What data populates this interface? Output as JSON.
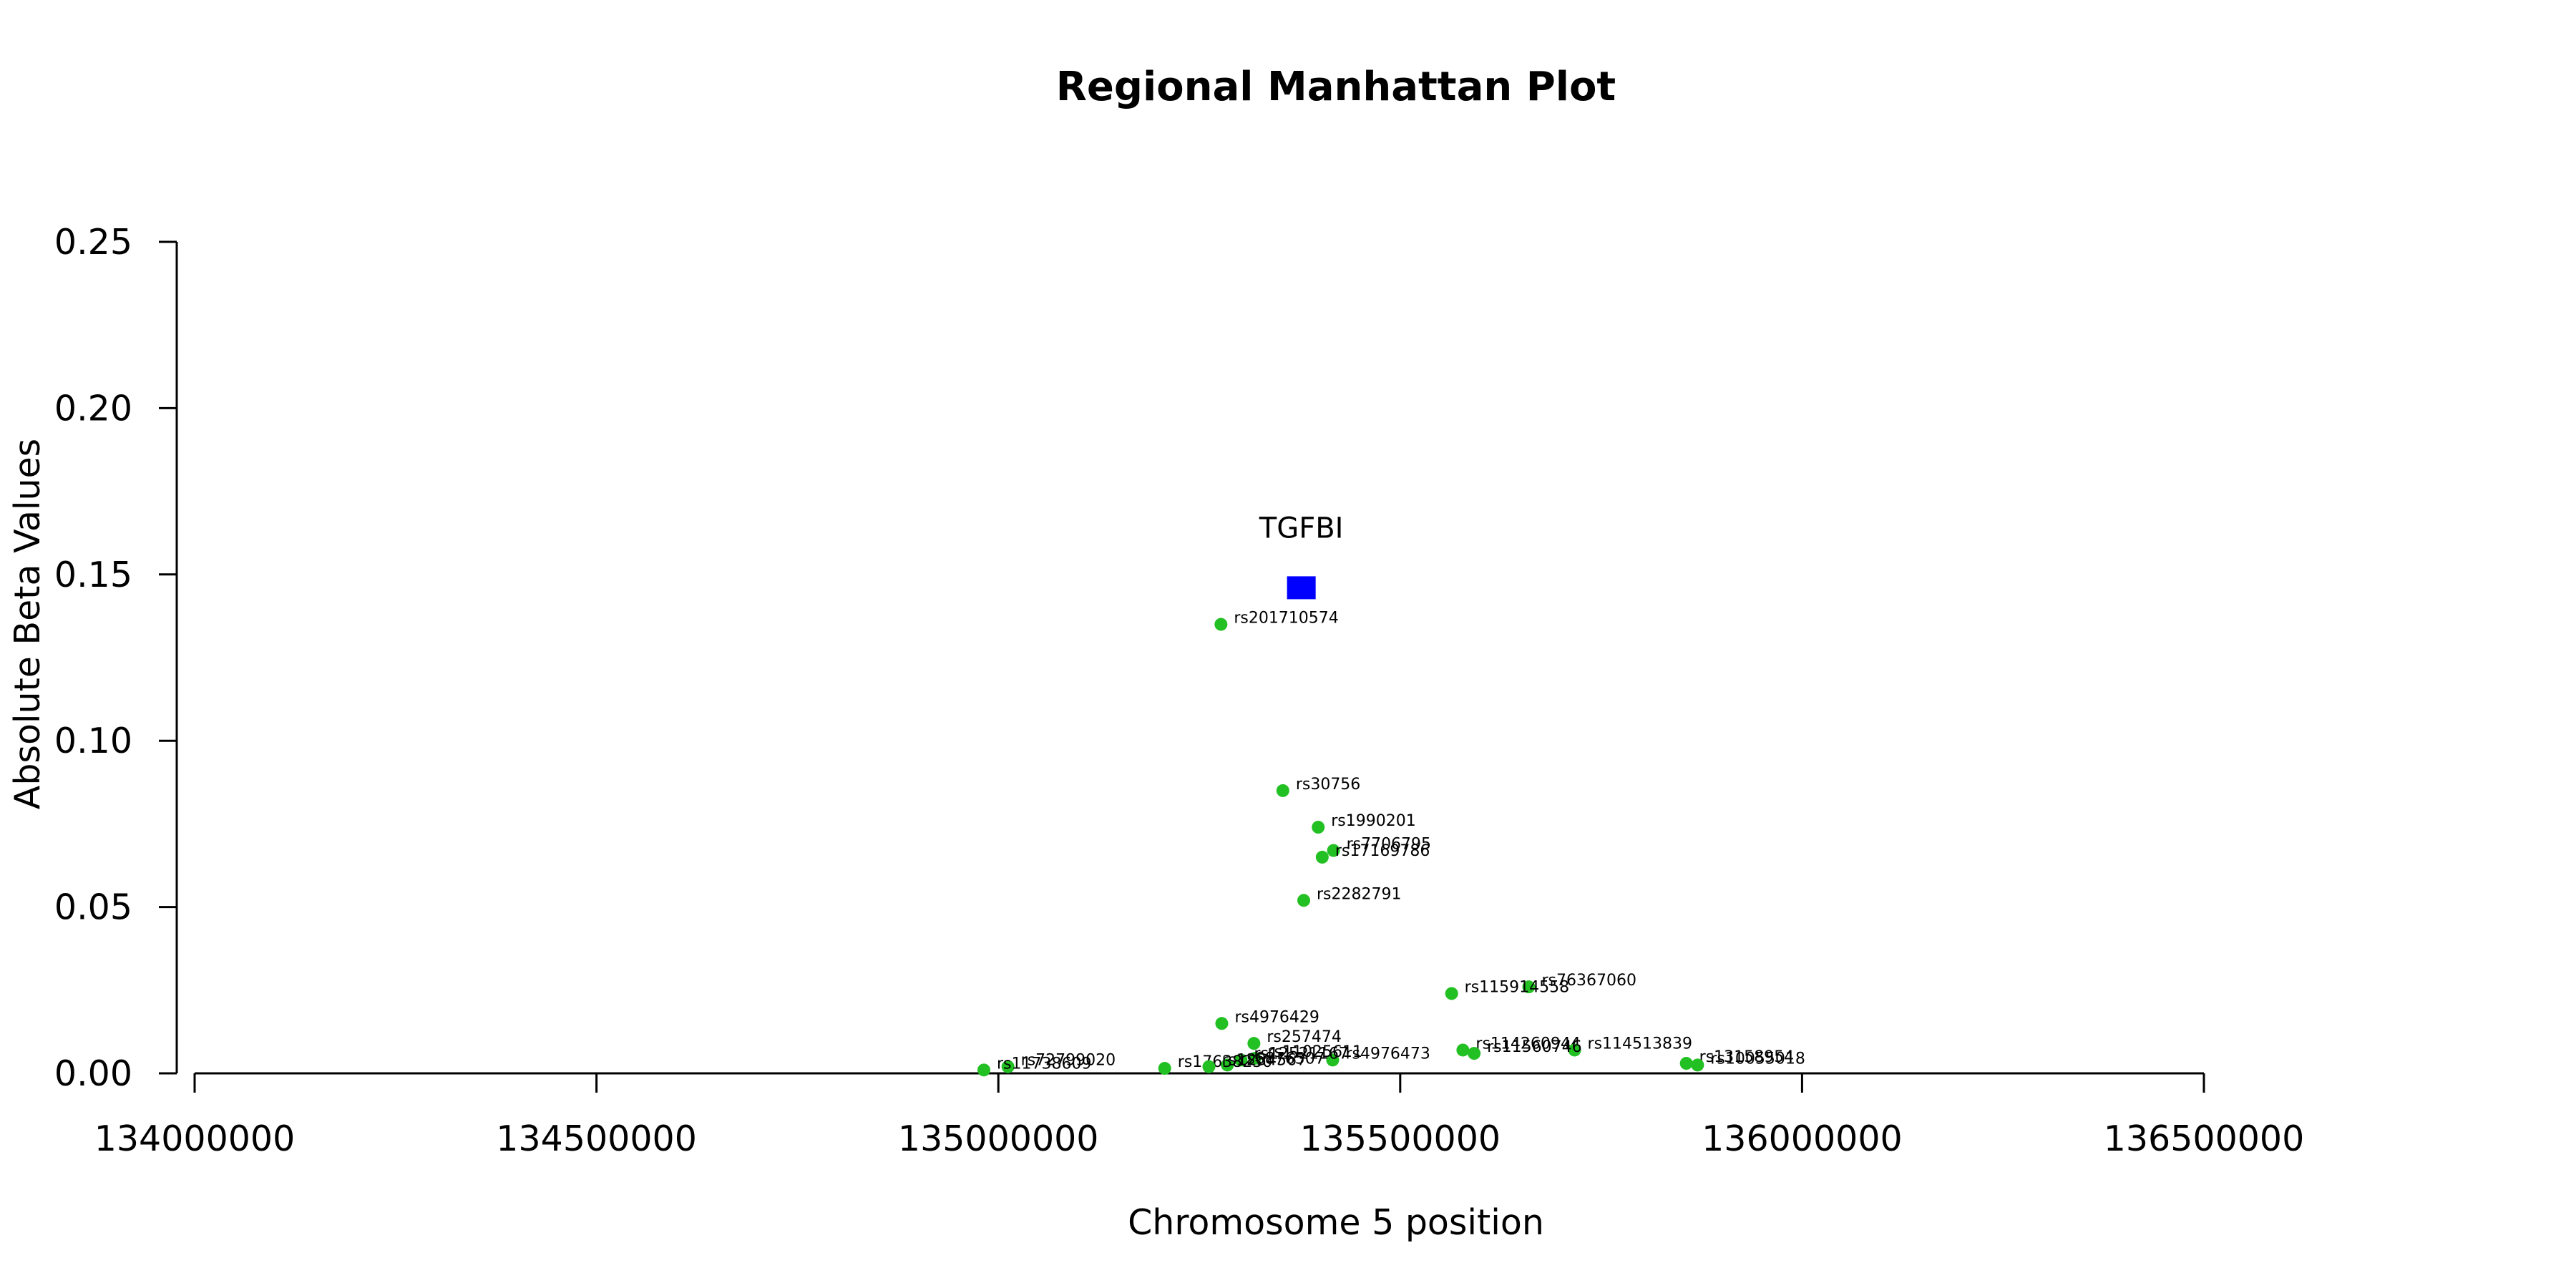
{
  "chart_data": {
    "type": "scatter",
    "title": "Regional Manhattan Plot",
    "xlabel": "Chromosome 5 position",
    "ylabel": "Absolute Beta Values",
    "xlim": [
      134000000,
      136500000
    ],
    "ylim": [
      0,
      0.25
    ],
    "x_ticks": [
      134000000,
      134500000,
      135000000,
      135500000,
      136000000,
      136500000
    ],
    "x_tick_labels": [
      "134000000",
      "134500000",
      "135000000",
      "135500000",
      "136000000",
      "136500000"
    ],
    "y_ticks": [
      0,
      0.05,
      0.1,
      0.15,
      0.2,
      0.25
    ],
    "y_tick_labels": [
      "0.00",
      "0.05",
      "0.10",
      "0.15",
      "0.20",
      "0.25"
    ],
    "grid": false,
    "colors": {
      "snp": "#22c022",
      "gene": "#0000ff"
    },
    "gene": {
      "label": "TGFBI",
      "x": 135377000,
      "y": 0.146
    },
    "series": [
      {
        "points": [
          {
            "label": "rs201710574",
            "x": 135277000,
            "y": 0.135
          },
          {
            "label": "rs30756",
            "x": 135354000,
            "y": 0.085
          },
          {
            "label": "rs1990201",
            "x": 135398000,
            "y": 0.074
          },
          {
            "label": "rs7706795",
            "x": 135417000,
            "y": 0.067
          },
          {
            "label": "rs17169786",
            "x": 135403000,
            "y": 0.065
          },
          {
            "label": "rs2282791",
            "x": 135380000,
            "y": 0.052
          },
          {
            "label": "rs76367060",
            "x": 135660000,
            "y": 0.026
          },
          {
            "label": "rs115914558",
            "x": 135564000,
            "y": 0.024
          },
          {
            "label": "rs4976429",
            "x": 135278000,
            "y": 0.015
          },
          {
            "label": "rs257474",
            "x": 135318000,
            "y": 0.009
          },
          {
            "label": "rs114260944",
            "x": 135578000,
            "y": 0.007
          },
          {
            "label": "rs114513839",
            "x": 135717000,
            "y": 0.007
          },
          {
            "label": "rs11560746",
            "x": 135592000,
            "y": 0.006
          },
          {
            "label": "rs4976473",
            "x": 135416000,
            "y": 0.004
          },
          {
            "label": "rs11025611",
            "x": 135319000,
            "y": 0.0045
          },
          {
            "label": "rs12521167",
            "x": 135302000,
            "y": 0.004
          },
          {
            "label": "rs13158954",
            "x": 135856000,
            "y": 0.003
          },
          {
            "label": "rs10055018",
            "x": 135870000,
            "y": 0.0025
          },
          {
            "label": "rs6876507",
            "x": 135285000,
            "y": 0.0025
          },
          {
            "label": "rs17638230",
            "x": 135207000,
            "y": 0.0015
          },
          {
            "label": "rs1234567",
            "x": 135262000,
            "y": 0.002
          },
          {
            "label": "rs72799020",
            "x": 135012000,
            "y": 0.002
          },
          {
            "label": "rs11738609",
            "x": 134982000,
            "y": 0.001
          }
        ]
      }
    ]
  }
}
